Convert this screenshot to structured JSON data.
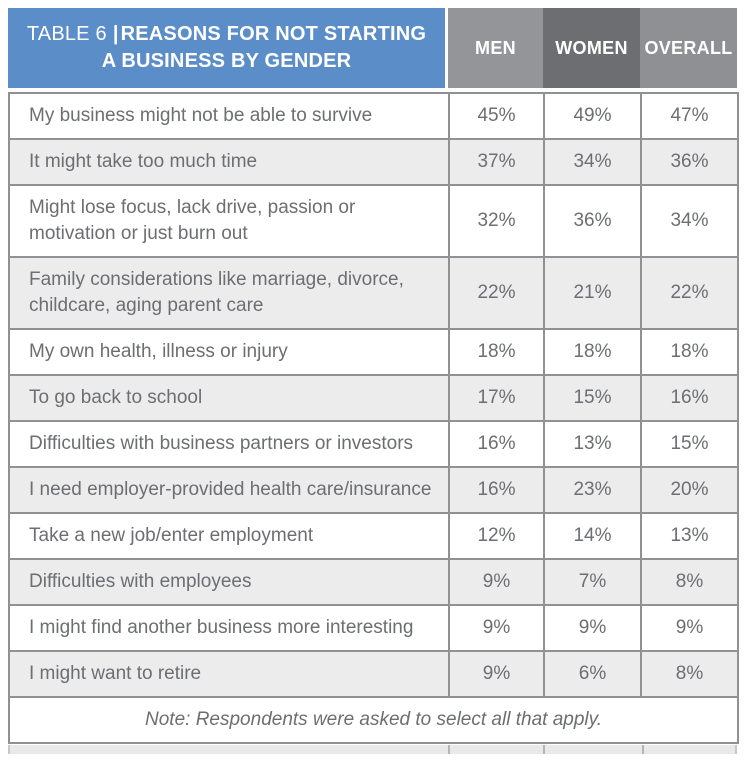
{
  "chart_data": {
    "type": "table",
    "title": "TABLE 6 | REASONS FOR NOT STARTING A BUSINESS BY GENDER",
    "title_label": "TABLE 6",
    "title_separator": "|",
    "title_text": "REASONS FOR NOT STARTING A BUSINESS BY GENDER",
    "columns": [
      "MEN",
      "WOMEN",
      "OVERALL"
    ],
    "rows": [
      {
        "reason": "My business might not be able to survive",
        "values": [
          "45%",
          "49%",
          "47%"
        ]
      },
      {
        "reason": "It might take too much time",
        "values": [
          "37%",
          "34%",
          "36%"
        ]
      },
      {
        "reason": "Might lose focus, lack drive, passion or motivation or just burn out",
        "values": [
          "32%",
          "36%",
          "34%"
        ]
      },
      {
        "reason": "Family considerations like marriage, divorce, childcare, aging parent care",
        "values": [
          "22%",
          "21%",
          "22%"
        ]
      },
      {
        "reason": "My own health, illness or injury",
        "values": [
          "18%",
          "18%",
          "18%"
        ]
      },
      {
        "reason": "To go back to school",
        "values": [
          "17%",
          "15%",
          "16%"
        ]
      },
      {
        "reason": "Difficulties with business partners or investors",
        "values": [
          "16%",
          "13%",
          "15%"
        ]
      },
      {
        "reason": "I need employer-provided health care/insurance",
        "values": [
          "16%",
          "23%",
          "20%"
        ]
      },
      {
        "reason": "Take a new job/enter employment",
        "values": [
          "12%",
          "14%",
          "13%"
        ]
      },
      {
        "reason": "Difficulties with employees",
        "values": [
          "9%",
          "7%",
          "8%"
        ]
      },
      {
        "reason": "I might find another business more interesting",
        "values": [
          "9%",
          "9%",
          "9%"
        ]
      },
      {
        "reason": "I might want to retire",
        "values": [
          "9%",
          "6%",
          "8%"
        ]
      }
    ],
    "note": "Note: Respondents were asked to select all that apply."
  },
  "colors": {
    "title_blue": "#5b8ec8",
    "men_header_bg": "#939598",
    "women_header_bg": "#6d6e71",
    "overall_header_bg": "#8e9093",
    "alt_row_bg": "#ececed",
    "body_text": "#6d6e71",
    "grid_border": "#8f9194"
  }
}
